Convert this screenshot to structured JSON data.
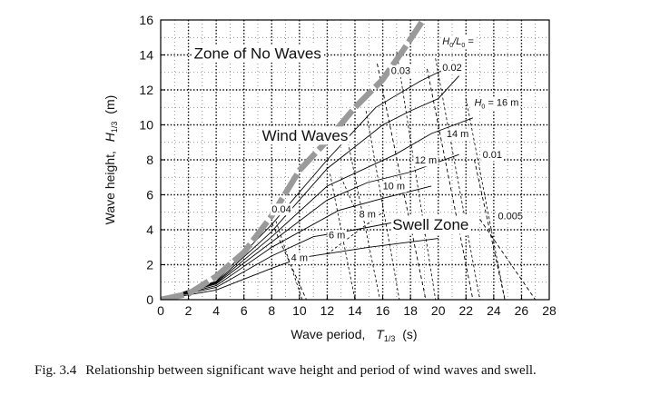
{
  "chart_data": {
    "type": "line",
    "title": "",
    "xlabel_main": "Wave period,",
    "xlabel_symbol": "T",
    "xlabel_sub": "1/3",
    "xlabel_unit": "(s)",
    "ylabel_main": "Wave height,",
    "ylabel_symbol": "H",
    "ylabel_sub": "1/3",
    "ylabel_unit": "(m)",
    "xlim": [
      0,
      28
    ],
    "ylim": [
      0,
      16
    ],
    "xticks": [
      0,
      2,
      4,
      6,
      8,
      10,
      12,
      14,
      16,
      18,
      20,
      22,
      24,
      26,
      28
    ],
    "yticks": [
      0,
      2,
      4,
      6,
      8,
      10,
      12,
      14,
      16
    ],
    "grid": true,
    "zones": [
      {
        "label": "Zone of No Waves",
        "T": 2.4,
        "H": 13.8
      },
      {
        "label": "Wind Waves",
        "T": 7.3,
        "H": 9.1
      },
      {
        "label": "Swell Zone",
        "T": 16.7,
        "H": 4.0
      }
    ],
    "steepness_header": {
      "prefix": "H",
      "sub": "0",
      "mid": "/L",
      "sub2": "0",
      "suffix": " =",
      "T": 20.3,
      "H": 14.6
    },
    "breaking_limit": {
      "name": "breaking limit",
      "x": [
        0,
        2,
        4,
        6,
        8,
        10,
        12,
        14,
        16,
        17.5,
        19
      ],
      "y": [
        0,
        0.33,
        1.33,
        2.7,
        4.8,
        7.4,
        9.1,
        11.0,
        12.6,
        14.3,
        16.1
      ]
    },
    "wave_height_lines": [
      {
        "label": "4 m",
        "x": [
          0,
          4,
          8,
          10.1,
          15,
          20
        ],
        "y": [
          0,
          0.55,
          1.8,
          2.4,
          3.0,
          3.5
        ],
        "label_T": 9.4,
        "label_H": 2.2
      },
      {
        "label": "6 m",
        "x": [
          0,
          4,
          8,
          11.0,
          14,
          18
        ],
        "y": [
          0,
          0.7,
          2.5,
          3.6,
          4.0,
          4.6
        ],
        "label_T": 12.1,
        "label_H": 3.5
      },
      {
        "label": "8 m",
        "x": [
          0,
          4,
          8,
          12.8,
          16,
          19.5
        ],
        "y": [
          0,
          0.8,
          3.0,
          5.1,
          5.8,
          6.5
        ],
        "label_T": 14.3,
        "label_H": 4.7
      },
      {
        "label": "10 m",
        "x": [
          0,
          4,
          8,
          12,
          14.9,
          18,
          21.5
        ],
        "y": [
          0,
          0.9,
          3.3,
          5.7,
          6.7,
          7.3,
          8.3
        ],
        "label_T": 16.0,
        "label_H": 6.3
      },
      {
        "label": "12 m",
        "x": [
          0,
          4,
          8,
          12,
          16.9,
          19.5,
          22.5
        ],
        "y": [
          0,
          0.95,
          3.6,
          6.5,
          8.3,
          9.5,
          10.4
        ],
        "label_T": 18.3,
        "label_H": 7.8
      },
      {
        "label": "14 m",
        "x": [
          0,
          4,
          8,
          12,
          16,
          18,
          20,
          21.5
        ],
        "y": [
          0,
          1.0,
          3.9,
          7.5,
          10.0,
          10.8,
          11.5,
          12.8
        ],
        "label_T": 20.6,
        "label_H": 9.3
      },
      {
        "label": "16 m",
        "x": [
          0,
          4,
          8,
          12,
          15.5,
          18.7,
          20.5
        ],
        "y": [
          0,
          1.05,
          4.3,
          8.0,
          11.0,
          12.5,
          13.2
        ],
        "label_T": 22.6,
        "label_H": 11.1,
        "label_prefix": "H",
        "label_sub": "0",
        "label_eq": " = "
      }
    ],
    "steepness_lines": [
      {
        "label": "0.04",
        "x": [
          8.0,
          10.5
        ],
        "y": [
          4.4,
          0
        ],
        "label_T": 8.0,
        "label_H": 5.0
      },
      {
        "label": "0.03",
        "x": [
          15.6,
          19.1
        ],
        "y": [
          13.5,
          0
        ],
        "label_T": 16.6,
        "label_H": 12.9
      },
      {
        "label": "0.02",
        "x": [
          19.2,
          22.5
        ],
        "y": [
          13.2,
          0
        ],
        "label_T": 20.3,
        "label_H": 13.1
      },
      {
        "label": "0.01",
        "x": [
          22.6,
          24.8
        ],
        "y": [
          8.0,
          0
        ],
        "label_T": 23.2,
        "label_H": 8.1
      },
      {
        "label": "0.005",
        "x": [
          23.0,
          27.0
        ],
        "y": [
          4.6,
          0
        ],
        "label_T": 24.3,
        "label_H": 4.6
      }
    ],
    "auxiliary_dashed_lines": [
      {
        "x": [
          8.3,
          10.2
        ],
        "y": [
          4.5,
          0
        ]
      },
      {
        "x": [
          12.2,
          14.0
        ],
        "y": [
          7.2,
          0
        ]
      },
      {
        "x": [
          13.5,
          15.8
        ],
        "y": [
          9.0,
          0
        ]
      },
      {
        "x": [
          14.8,
          17.2
        ],
        "y": [
          10.8,
          0
        ]
      },
      {
        "x": [
          17.0,
          19.8
        ],
        "y": [
          14.2,
          0
        ]
      },
      {
        "x": [
          19.8,
          23.0
        ],
        "y": [
          13.8,
          0
        ]
      },
      {
        "x": [
          22.0,
          24.8
        ],
        "y": [
          11.5,
          0
        ]
      },
      {
        "x": [
          13.0,
          14.0
        ],
        "y": [
          7.0,
          5.2
        ]
      },
      {
        "x": [
          12.0,
          16.0
        ],
        "y": [
          2.6,
          5.0
        ]
      }
    ]
  },
  "caption": {
    "figure_number": "Fig. 3.4",
    "text": "Relationship between significant wave height and period of wind waves and swell."
  }
}
